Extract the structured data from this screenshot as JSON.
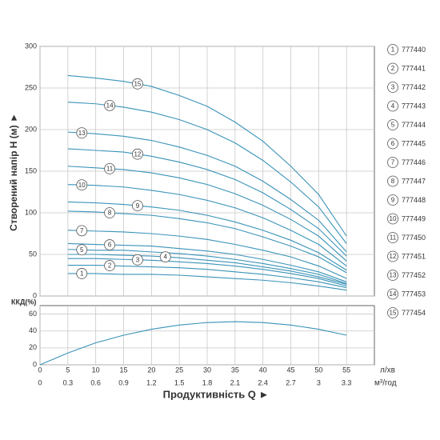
{
  "chart_data": [
    {
      "type": "line",
      "y_label": "Створений напір H (м) ►",
      "xlim": [
        0,
        60
      ],
      "ylim": [
        0,
        300
      ],
      "yticks": [
        0,
        50,
        100,
        150,
        200,
        250,
        300
      ],
      "grid": true,
      "x": [
        5,
        10,
        15,
        20,
        25,
        30,
        35,
        40,
        45,
        50,
        55
      ],
      "series": [
        {
          "name": "777440",
          "label": "1",
          "color": "#3a93b8",
          "values": [
            27,
            27,
            26,
            26,
            25,
            23,
            21,
            19,
            16,
            12,
            7
          ]
        },
        {
          "name": "777441",
          "label": "2",
          "color": "#3a93b8",
          "values": [
            37,
            37,
            36,
            35,
            34,
            32,
            29,
            26,
            22,
            17,
            10
          ]
        },
        {
          "name": "777442",
          "label": "3",
          "color": "#3a93b8",
          "values": [
            45,
            45,
            44,
            43,
            41,
            39,
            36,
            32,
            27,
            21,
            12
          ]
        },
        {
          "name": "777443",
          "label": "4",
          "color": "#3a93b8",
          "values": [
            50,
            50,
            49,
            48,
            46,
            43,
            40,
            35,
            30,
            23,
            14
          ]
        },
        {
          "name": "777444",
          "label": "5",
          "color": "#3a93b8",
          "values": [
            56,
            55,
            55,
            53,
            51,
            48,
            44,
            39,
            33,
            26,
            15
          ]
        },
        {
          "name": "777445",
          "label": "6",
          "color": "#3a93b8",
          "values": [
            63,
            62,
            61,
            60,
            57,
            54,
            50,
            44,
            37,
            29,
            17
          ]
        },
        {
          "name": "777446",
          "label": "7",
          "color": "#3a93b8",
          "values": [
            79,
            78,
            77,
            75,
            72,
            68,
            62,
            55,
            47,
            36,
            21
          ]
        },
        {
          "name": "777447",
          "label": "8",
          "color": "#3a93b8",
          "values": [
            102,
            101,
            99,
            97,
            93,
            88,
            81,
            71,
            60,
            47,
            28
          ]
        },
        {
          "name": "777448",
          "label": "9",
          "color": "#3a93b8",
          "values": [
            113,
            112,
            110,
            107,
            103,
            97,
            89,
            79,
            67,
            52,
            31
          ]
        },
        {
          "name": "777449",
          "label": "10",
          "color": "#3a93b8",
          "values": [
            134,
            133,
            131,
            127,
            122,
            115,
            106,
            94,
            79,
            62,
            36
          ]
        },
        {
          "name": "777450",
          "label": "11",
          "color": "#3a93b8",
          "values": [
            156,
            154,
            152,
            148,
            142,
            134,
            123,
            109,
            92,
            72,
            42
          ]
        },
        {
          "name": "777451",
          "label": "12",
          "color": "#3a93b8",
          "values": [
            177,
            175,
            173,
            168,
            161,
            152,
            140,
            124,
            104,
            81,
            48
          ]
        },
        {
          "name": "777452",
          "label": "13",
          "color": "#3a93b8",
          "values": [
            197,
            195,
            192,
            187,
            179,
            169,
            156,
            138,
            116,
            91,
            53
          ]
        },
        {
          "name": "777453",
          "label": "14",
          "color": "#3a93b8",
          "values": [
            233,
            231,
            227,
            221,
            212,
            200,
            184,
            163,
            137,
            107,
            63
          ]
        },
        {
          "name": "777454",
          "label": "15",
          "color": "#3a93b8",
          "values": [
            265,
            262,
            258,
            252,
            241,
            228,
            209,
            186,
            156,
            122,
            72
          ]
        }
      ]
    },
    {
      "type": "line",
      "y_label": "ККД(%)",
      "x_label": "Продуктивність  Q ►",
      "x_unit": "л/хв",
      "x2_unit": "м³/год",
      "xlim": [
        0,
        60
      ],
      "xticks": [
        0,
        5,
        10,
        15,
        20,
        25,
        30,
        35,
        40,
        45,
        50,
        55
      ],
      "x2lim": [
        0,
        3.6
      ],
      "x2ticks": [
        0,
        0.3,
        0.6,
        0.9,
        1.2,
        1.5,
        1.8,
        2.1,
        2.4,
        2.7,
        3.0,
        3.3
      ],
      "ylim": [
        0,
        70
      ],
      "yticks": [
        0,
        20,
        40,
        60
      ],
      "grid": true,
      "x": [
        0,
        5,
        10,
        15,
        20,
        25,
        30,
        35,
        40,
        45,
        50,
        55
      ],
      "color": "#3a93b8",
      "values": [
        0,
        14,
        26,
        35,
        42,
        47,
        50,
        51,
        50,
        47,
        42,
        35
      ]
    }
  ]
}
